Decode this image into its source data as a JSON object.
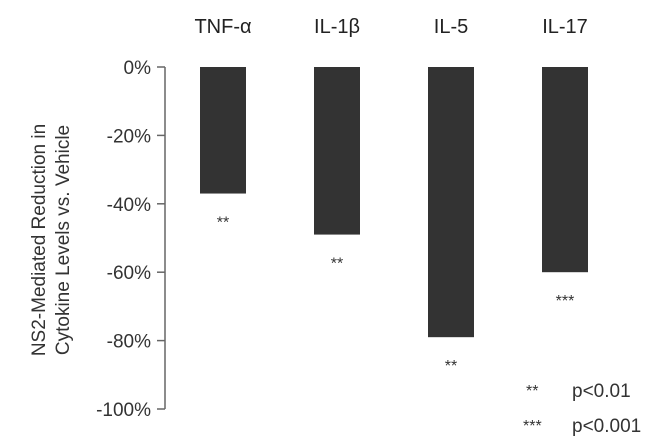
{
  "chart_data": {
    "type": "bar",
    "categories": [
      "TNF-α",
      "IL-1β",
      "IL-5",
      "IL-17"
    ],
    "values": [
      -37,
      -49,
      -79,
      -60
    ],
    "significance": [
      "**",
      "**",
      "**",
      "***"
    ],
    "ylabel_lines": [
      "NS2-Mediated Reduction in",
      "Cytokine Levels vs. Vehicle"
    ],
    "yticks": [
      "0%",
      "-20%",
      "-40%",
      "-60%",
      "-80%",
      "-100%"
    ],
    "ytick_values": [
      0,
      -20,
      -40,
      -60,
      -80,
      -100
    ],
    "ylim": [
      -100,
      0
    ],
    "bar_color": "#333333",
    "legend": [
      {
        "symbol": "**",
        "text": "p<0.01"
      },
      {
        "symbol": "***",
        "text": "p<0.001"
      }
    ]
  }
}
